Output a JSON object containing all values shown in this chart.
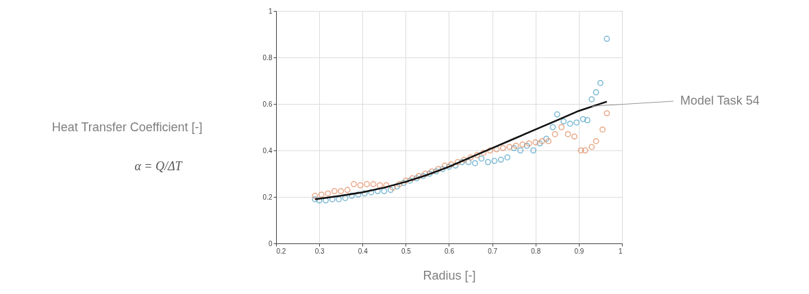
{
  "chart_data": {
    "type": "scatter",
    "xlabel": "Radius [-]",
    "ylabel": "Heat Transfer Coefficient [-]",
    "xlim": [
      0.2,
      1
    ],
    "ylim": [
      0,
      1
    ],
    "xticks": [
      0.2,
      0.3,
      0.4,
      0.5,
      0.6,
      0.7,
      0.8,
      0.9,
      1
    ],
    "yticks": [
      0,
      0.2,
      0.4,
      0.6,
      0.8,
      1
    ],
    "grid": true,
    "marker": "circle",
    "annotations": [
      "α = Q/ΔT",
      {
        "text": "Model Task 54",
        "x": 0.93,
        "y": 0.59
      }
    ],
    "series": [
      {
        "color": "#4a9ec4",
        "x": [
          0.29,
          0.3,
          0.315,
          0.33,
          0.345,
          0.36,
          0.375,
          0.39,
          0.405,
          0.42,
          0.435,
          0.45,
          0.465,
          0.48,
          0.495,
          0.51,
          0.525,
          0.54,
          0.555,
          0.57,
          0.585,
          0.6,
          0.615,
          0.63,
          0.645,
          0.66,
          0.675,
          0.69,
          0.705,
          0.72,
          0.735,
          0.75,
          0.765,
          0.78,
          0.795,
          0.81,
          0.825,
          0.84,
          0.85,
          0.865,
          0.88,
          0.895,
          0.91,
          0.92,
          0.93,
          0.94,
          0.95,
          0.965
        ],
        "values": [
          0.19,
          0.185,
          0.185,
          0.19,
          0.19,
          0.195,
          0.205,
          0.21,
          0.215,
          0.22,
          0.225,
          0.225,
          0.23,
          0.245,
          0.26,
          0.27,
          0.28,
          0.29,
          0.3,
          0.31,
          0.32,
          0.33,
          0.335,
          0.35,
          0.35,
          0.345,
          0.365,
          0.35,
          0.355,
          0.36,
          0.37,
          0.41,
          0.4,
          0.42,
          0.4,
          0.43,
          0.45,
          0.5,
          0.555,
          0.525,
          0.515,
          0.52,
          0.535,
          0.53,
          0.62,
          0.65,
          0.69,
          0.88
        ]
      },
      {
        "color": "#e0875a",
        "x": [
          0.29,
          0.305,
          0.32,
          0.335,
          0.35,
          0.365,
          0.38,
          0.395,
          0.41,
          0.425,
          0.44,
          0.455,
          0.47,
          0.485,
          0.5,
          0.515,
          0.53,
          0.545,
          0.56,
          0.575,
          0.59,
          0.605,
          0.62,
          0.635,
          0.65,
          0.665,
          0.68,
          0.695,
          0.71,
          0.725,
          0.74,
          0.755,
          0.77,
          0.785,
          0.8,
          0.815,
          0.83,
          0.845,
          0.86,
          0.875,
          0.89,
          0.905,
          0.915,
          0.93,
          0.94,
          0.955,
          0.965
        ],
        "values": [
          0.205,
          0.21,
          0.215,
          0.225,
          0.225,
          0.23,
          0.255,
          0.25,
          0.255,
          0.255,
          0.25,
          0.25,
          0.24,
          0.255,
          0.27,
          0.28,
          0.29,
          0.3,
          0.31,
          0.32,
          0.335,
          0.34,
          0.35,
          0.36,
          0.37,
          0.38,
          0.39,
          0.4,
          0.405,
          0.41,
          0.415,
          0.42,
          0.425,
          0.43,
          0.435,
          0.44,
          0.44,
          0.47,
          0.5,
          0.47,
          0.46,
          0.4,
          0.4,
          0.415,
          0.44,
          0.49,
          0.56
        ]
      },
      {
        "type": "line",
        "color": "#111111",
        "marker": "none",
        "x": [
          0.29,
          0.35,
          0.4,
          0.45,
          0.5,
          0.55,
          0.6,
          0.65,
          0.7,
          0.75,
          0.8,
          0.85,
          0.9,
          0.965
        ],
        "values": [
          0.19,
          0.205,
          0.22,
          0.24,
          0.265,
          0.295,
          0.33,
          0.37,
          0.41,
          0.45,
          0.49,
          0.53,
          0.57,
          0.61
        ]
      }
    ]
  }
}
